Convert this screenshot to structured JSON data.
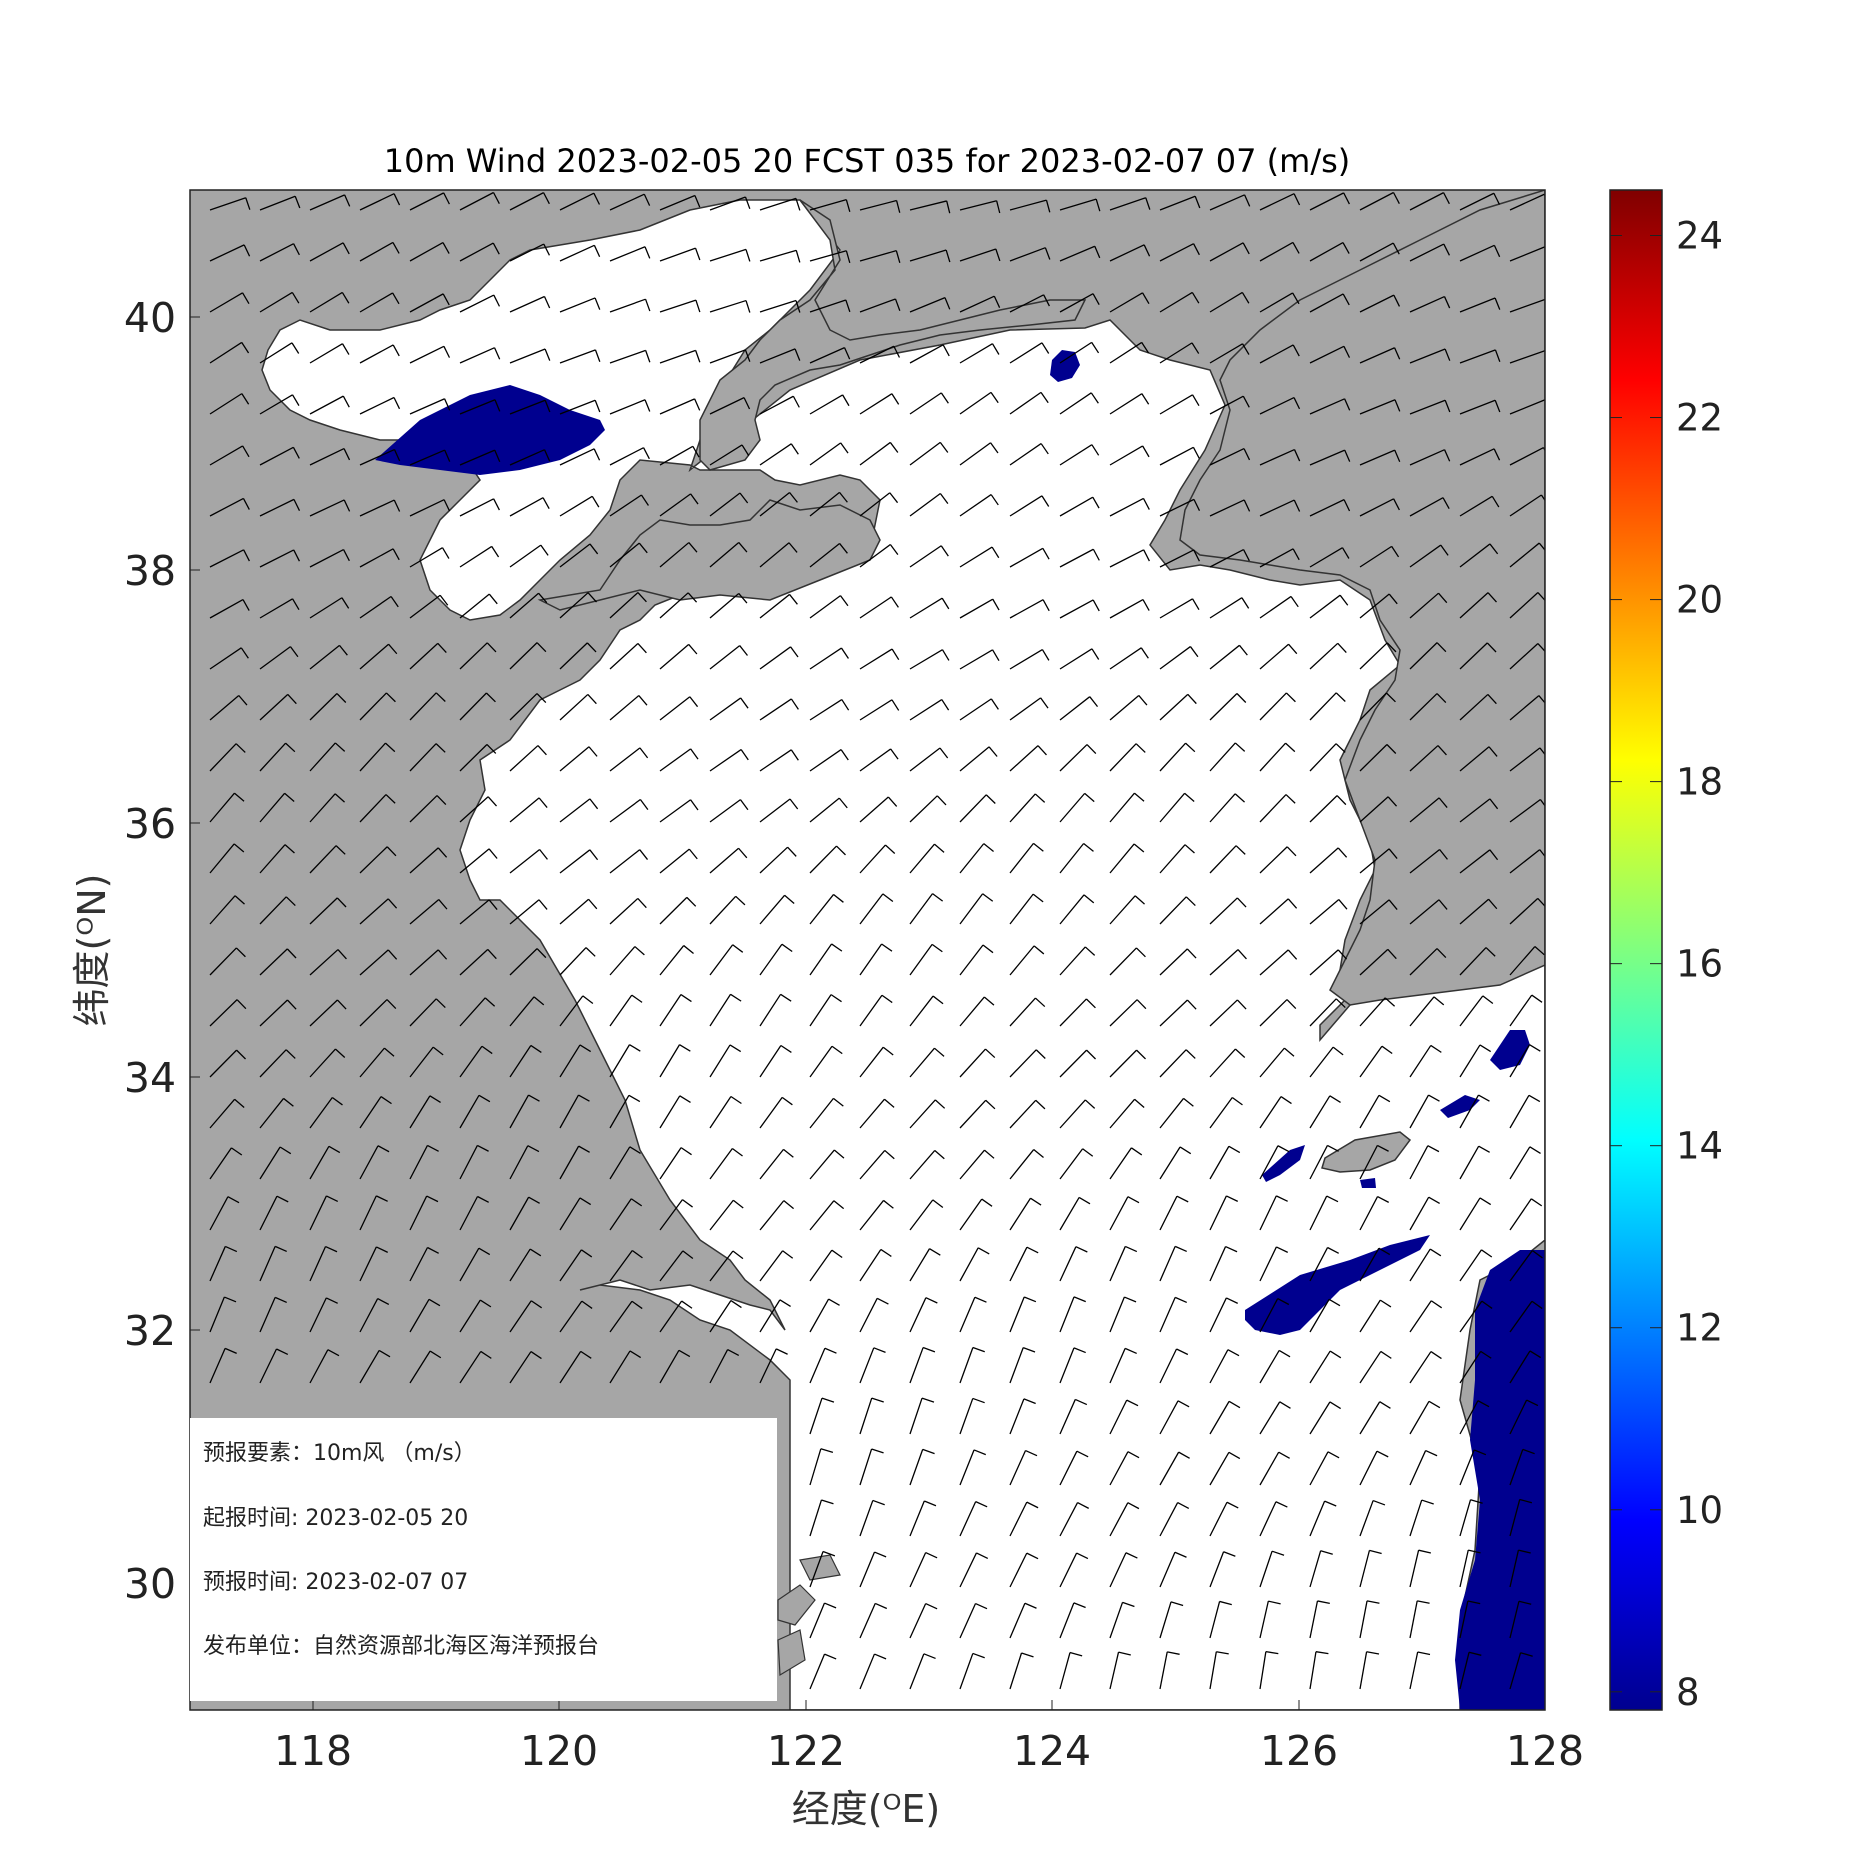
{
  "title": "10m Wind 2023-02-05 20 FCST 035 for 2023-02-07 07 (m/s)",
  "axes": {
    "xlabel": "经度(ᴼE)",
    "ylabel": "纬度(ᴼN)",
    "xlim": [
      117,
      128
    ],
    "ylim": [
      29,
      41
    ],
    "xticks": [
      "118",
      "120",
      "122",
      "124",
      "126",
      "128"
    ],
    "yticks": [
      "30",
      "32",
      "34",
      "36",
      "38",
      "40"
    ]
  },
  "colorbar": {
    "range": [
      7.8,
      24.5
    ],
    "ticks": [
      "8",
      "10",
      "12",
      "14",
      "16",
      "18",
      "20",
      "22",
      "24"
    ],
    "colormap": "jet"
  },
  "info": {
    "element": "预报要素：10m风 （m/s）",
    "init_time": "起报时间: 2023-02-05 20",
    "valid_time": "预报时间: 2023-02-07 07",
    "publisher": "发布单位：自然资源部北海区海洋预报台"
  },
  "colors": {
    "land": "#a6a6a6",
    "sea": "#ffffff",
    "speed_8": "#00008f",
    "barb": "#000000"
  },
  "wind_field": {
    "unit": "m/s",
    "dominant_direction": "from west-southwest (northern area), from south (southern area)",
    "areas_at_or_above_8ms": [
      "Bohai Bay",
      "north of Korea Bay coast",
      "northeast of Jeju Island",
      "east of Yangtze mouth",
      "eastern edge 128E south of 32N"
    ]
  }
}
